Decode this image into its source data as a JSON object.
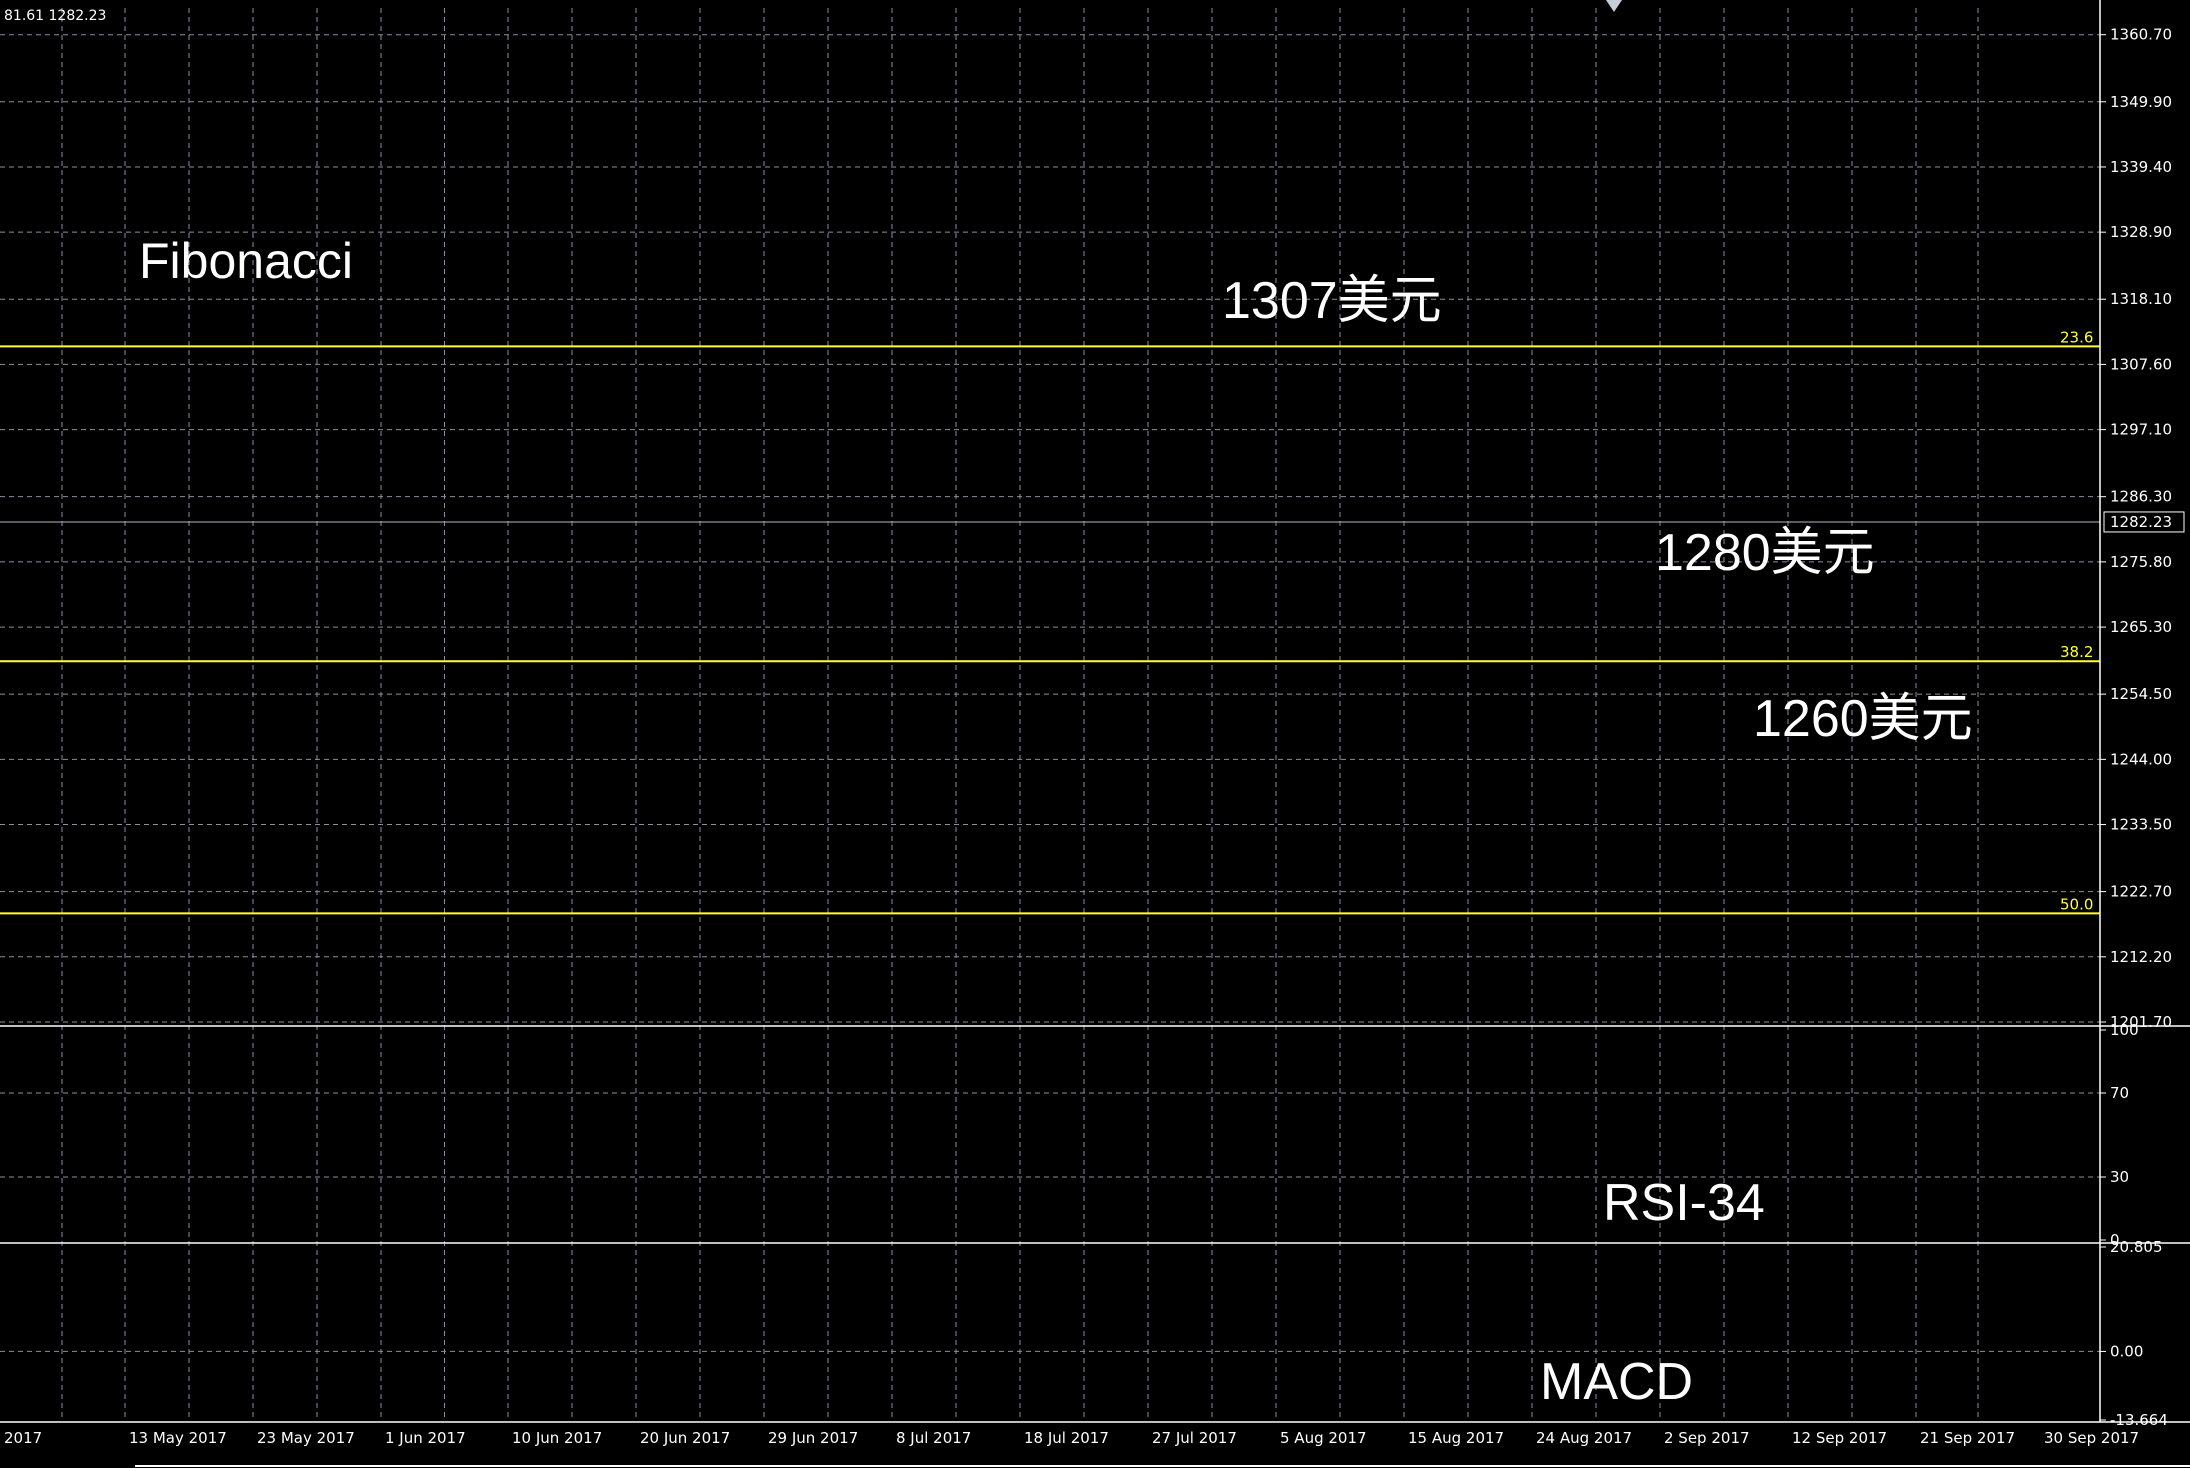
{
  "header": {
    "ohlc_readout": "81.61 1282.23"
  },
  "colors": {
    "background": "#000000",
    "grid": "#8a8fa0",
    "bull_candle": "#ffffff",
    "candle_outline": "#00ff00",
    "ma_line": "#ff2a2a",
    "fib_line": "#ffff33",
    "rsi_line": "#1e7de0",
    "macd_hist": "#ffffff",
    "macd_signal": "#ff2a2a",
    "current_price_line": "#b0b8c8"
  },
  "annotations": {
    "fibonacci": "Fibonacci",
    "level_1307": "1307美元",
    "level_1280": "1280美元",
    "level_1260": "1260美元",
    "rsi": "RSI-34",
    "macd": "MACD"
  },
  "chart_data": [
    {
      "type": "candlestick",
      "title": "",
      "ylim": [
        1201.7,
        1365.0
      ],
      "y_ticks": [
        "1360.70",
        "1349.90",
        "1339.40",
        "1328.90",
        "1318.10",
        "1307.60",
        "1297.10",
        "1286.30",
        "1275.80",
        "1265.30",
        "1254.50",
        "1244.00",
        "1233.50",
        "1222.70",
        "1212.20",
        "1201.70"
      ],
      "x_ticks": [
        "2017",
        "13 May 2017",
        "23 May 2017",
        "1 Jun 2017",
        "10 Jun 2017",
        "20 Jun 2017",
        "29 Jun 2017",
        "8 Jul 2017",
        "18 Jul 2017",
        "27 Jul 2017",
        "5 Aug 2017",
        "15 Aug 2017",
        "24 Aug 2017",
        "2 Sep 2017",
        "12 Sep 2017",
        "21 Sep 2017",
        "30 Sep 2017"
      ],
      "current_price": "1282.23",
      "fibonacci_levels": [
        {
          "label": "23.6",
          "value": 1310.5
        },
        {
          "label": "38.2",
          "value": 1259.8
        },
        {
          "label": "50.0",
          "value": 1219.2
        }
      ],
      "ohlc": [],
      "ma": []
    },
    {
      "type": "line",
      "title": "",
      "y_ticks": [
        "100",
        "70",
        "30",
        "0"
      ],
      "ylim": [
        0,
        100
      ],
      "rsi": []
    },
    {
      "type": "bar",
      "title": "",
      "y_ticks": [
        "20.805",
        "0.00",
        "-13.664"
      ],
      "ylim": [
        -13.664,
        20.805
      ],
      "macd": [],
      "signal": []
    }
  ]
}
